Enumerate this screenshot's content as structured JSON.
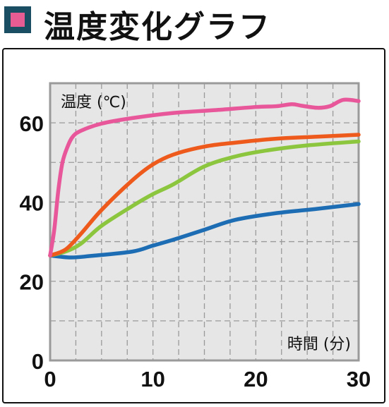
{
  "title": "温度変化グラフ",
  "colors": {
    "title_marker_outer": "#1a4f63",
    "title_marker_inner": "#e75c92",
    "plot_background": "#e6e6e6",
    "grid": "#9a9a9a"
  },
  "chart_data": {
    "type": "line",
    "title": "",
    "xlabel": "時間 (分)",
    "ylabel": "温度 (℃)",
    "xlim": [
      0,
      30
    ],
    "ylim": [
      0,
      70
    ],
    "x_ticks": [
      0,
      10,
      20,
      30
    ],
    "y_ticks": [
      0,
      20,
      40,
      60
    ],
    "grid": true,
    "series": [
      {
        "color": "#e8579a",
        "points": [
          [
            0,
            26.5
          ],
          [
            0.4,
            33
          ],
          [
            0.8,
            43
          ],
          [
            1.2,
            50
          ],
          [
            1.7,
            54
          ],
          [
            2.2,
            56.5
          ],
          [
            3,
            58
          ],
          [
            5,
            59.8
          ],
          [
            8,
            61.2
          ],
          [
            12,
            62.5
          ],
          [
            16,
            63.2
          ],
          [
            20,
            64.0
          ],
          [
            22,
            64.2
          ],
          [
            23.5,
            64.7
          ],
          [
            24.5,
            64.3
          ],
          [
            26,
            63.8
          ],
          [
            27.2,
            64.2
          ],
          [
            28.5,
            65.8
          ],
          [
            30,
            65.5
          ]
        ]
      },
      {
        "color": "#ee5a1c",
        "points": [
          [
            0,
            26.5
          ],
          [
            1.5,
            28
          ],
          [
            3,
            32
          ],
          [
            5,
            38
          ],
          [
            8,
            45.5
          ],
          [
            10,
            49.5
          ],
          [
            12,
            52
          ],
          [
            15,
            54
          ],
          [
            18,
            55
          ],
          [
            22,
            56
          ],
          [
            26,
            56.5
          ],
          [
            30,
            57
          ]
        ]
      },
      {
        "color": "#8cc63f",
        "points": [
          [
            0,
            26.5
          ],
          [
            1.5,
            27.5
          ],
          [
            3,
            29.5
          ],
          [
            5,
            34
          ],
          [
            8,
            39
          ],
          [
            10,
            42
          ],
          [
            12,
            44.5
          ],
          [
            15,
            49
          ],
          [
            18,
            51.5
          ],
          [
            21,
            53
          ],
          [
            25,
            54.3
          ],
          [
            30,
            55.3
          ]
        ]
      },
      {
        "color": "#1c6db3",
        "points": [
          [
            0,
            26.5
          ],
          [
            2,
            26
          ],
          [
            4,
            26.4
          ],
          [
            8,
            27.5
          ],
          [
            10,
            29
          ],
          [
            12,
            30.5
          ],
          [
            15,
            33
          ],
          [
            18,
            35.5
          ],
          [
            22,
            37.2
          ],
          [
            26,
            38.3
          ],
          [
            30,
            39.5
          ]
        ]
      }
    ]
  }
}
